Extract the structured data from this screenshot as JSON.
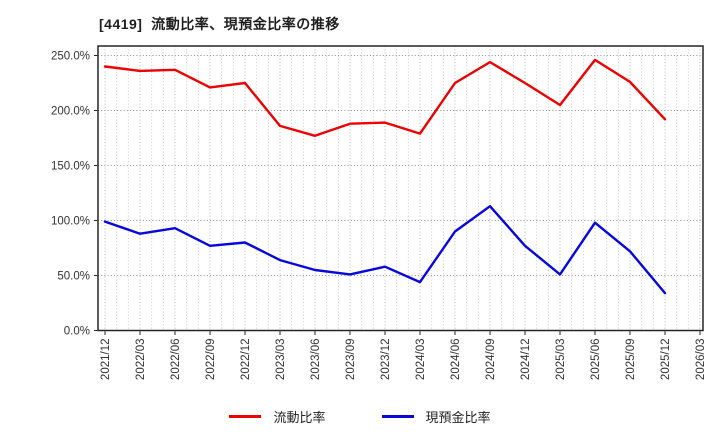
{
  "title": "[4419]  流動比率、現預金比率の推移",
  "legend": {
    "items": [
      {
        "label": "流動比率",
        "color": "#ee0000"
      },
      {
        "label": "現預金比率",
        "color": "#0707dd"
      }
    ]
  },
  "colors": {
    "series_current_ratio": "#ee0000",
    "series_cash_ratio": "#0707dd",
    "frame": "#262626",
    "grid_horizontal": "#8f8f8f",
    "grid_vertical_major": "#ababab",
    "grid_vertical_minor": "#c3c3c3",
    "tick_text": "#333333",
    "background": "#ffffff"
  },
  "chart_data": {
    "type": "line",
    "title": "[4419]  流動比率、現預金比率の推移",
    "x_labels": [
      "2021/12",
      "2022/03",
      "2022/06",
      "2022/09",
      "2022/12",
      "2023/03",
      "2023/06",
      "2023/09",
      "2023/12",
      "2024/03",
      "2024/06",
      "2024/09",
      "2024/12",
      "2025/03",
      "2025/06",
      "2025/09",
      "2025/12",
      "2026/03"
    ],
    "series": [
      {
        "name": "流動比率",
        "color": "#ee0000",
        "values": [
          240,
          236,
          237,
          221,
          225,
          186,
          177,
          188,
          189,
          179,
          225,
          244,
          225,
          205,
          246,
          226,
          192
        ]
      },
      {
        "name": "現預金比率",
        "color": "#0707dd",
        "values": [
          99,
          88,
          93,
          77,
          80,
          64,
          55,
          51,
          58,
          44,
          90,
          113,
          77,
          51,
          98,
          72,
          34
        ]
      }
    ],
    "y_tick_values": [
      0,
      50,
      100,
      150,
      200,
      250
    ],
    "y_tick_labels": [
      "0.0%",
      "50.0%",
      "100.0%",
      "150.0%",
      "200.0%",
      "250.0%"
    ],
    "ylim": [
      0,
      258.5
    ],
    "unit": "%",
    "grid": true,
    "minor_gridlines_per_interval": 3,
    "legend_position": "bottom-center"
  }
}
